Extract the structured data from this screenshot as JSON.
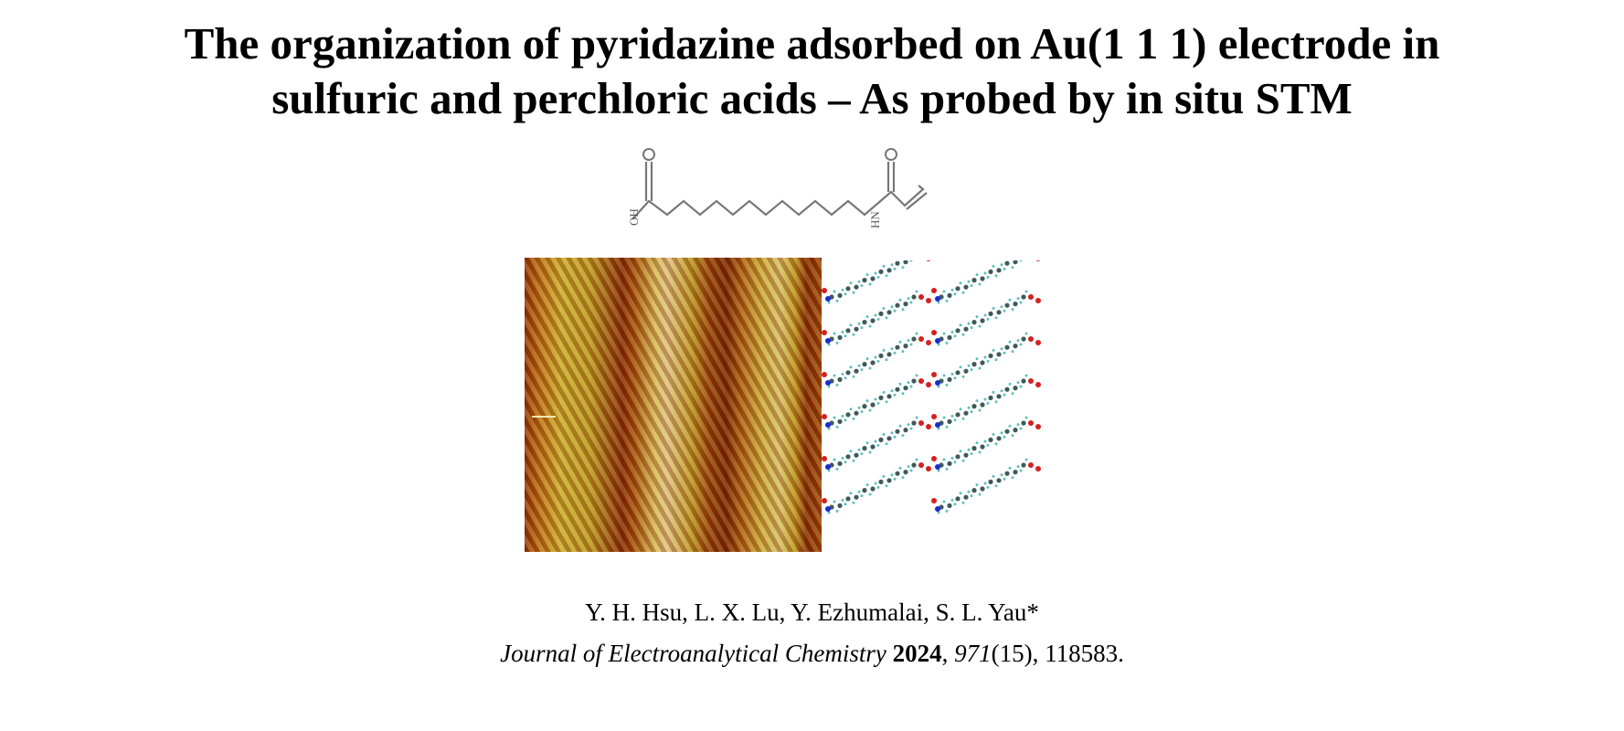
{
  "title": {
    "line1": "The organization of pyridazine adsorbed on Au(1 1 1) electrode in",
    "line2": "sulfuric and perchloric acids – As probed by in situ STM"
  },
  "molecule": {
    "label_oh": "OH",
    "label_hn": "HN",
    "label_o1": "O",
    "label_o2": "O"
  },
  "authors": "Y. H. Hsu, L. X. Lu, Y. Ezhumalai, S. L. Yau*",
  "citation": {
    "journal": "Journal of Electroanalytical Chemistry",
    "year": "2024",
    "volume": "971",
    "issue": "(15), 118583."
  },
  "colors": {
    "oxygen": "#d42020",
    "nitrogen": "#1a2ad0",
    "carbon": "#3f5a58",
    "hydrogen": "#5fbfc0"
  }
}
